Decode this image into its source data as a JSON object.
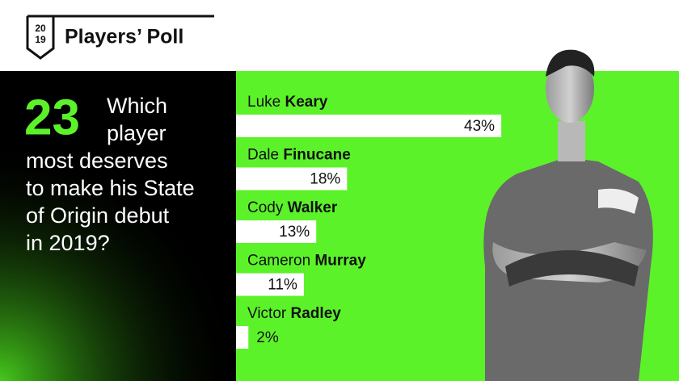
{
  "header": {
    "logo_top": "20",
    "logo_bottom": "19",
    "title": "Players’ Poll"
  },
  "question": {
    "number": "23",
    "lines": [
      "Which",
      "player",
      "most deserves",
      "to make his State",
      "of Origin debut",
      "in 2019?"
    ]
  },
  "chart_data": {
    "type": "bar",
    "categories": [
      "Luke Keary",
      "Dale Finucane",
      "Cody Walker",
      "Cameron Murray",
      "Victor Radley"
    ],
    "values": [
      43,
      18,
      13,
      11,
      2
    ],
    "value_labels": [
      "43%",
      "18%",
      "13%",
      "11%",
      "2%"
    ],
    "color": "#ffffff"
  }
}
